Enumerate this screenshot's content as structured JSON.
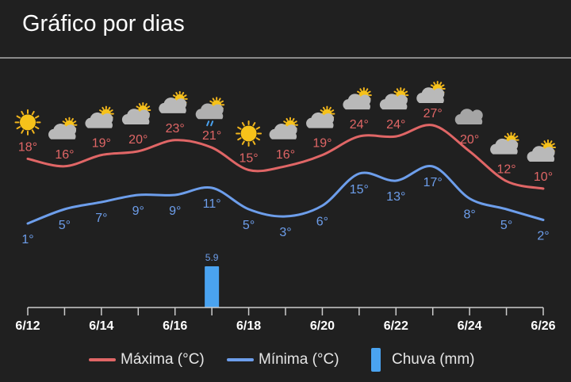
{
  "header": {
    "title": "Gráfico por dias"
  },
  "colors": {
    "max": "#e06666",
    "min": "#6d9eeb",
    "rain": "#4aa3f0",
    "axis": "#cccccc",
    "background": "#202020"
  },
  "chart_data": {
    "type": "line",
    "x": [
      "6/12",
      "6/13",
      "6/14",
      "6/15",
      "6/16",
      "6/17",
      "6/18",
      "6/19",
      "6/20",
      "6/21",
      "6/22",
      "6/23",
      "6/24",
      "6/25",
      "6/26"
    ],
    "x_tick_labels": [
      "6/12",
      "6/14",
      "6/16",
      "6/18",
      "6/20",
      "6/22",
      "6/24",
      "6/26"
    ],
    "series": [
      {
        "name": "Máxima (°C)",
        "values": [
          18,
          16,
          19,
          20,
          23,
          21,
          15,
          16,
          19,
          24,
          24,
          27,
          20,
          12,
          10
        ],
        "labels": [
          "18°",
          "16°",
          "19°",
          "20°",
          "23°",
          "21°",
          "15°",
          "16°",
          "19°",
          "24°",
          "24°",
          "27°",
          "20°",
          "12°",
          "10°"
        ]
      },
      {
        "name": "Mínima (°C)",
        "values": [
          1,
          5,
          7,
          9,
          9,
          11,
          5,
          3,
          6,
          15,
          13,
          17,
          8,
          5,
          2
        ],
        "labels": [
          "1°",
          "5°",
          "7°",
          "9°",
          "9°",
          "11°",
          "5°",
          "3°",
          "6°",
          "15°",
          "13°",
          "17°",
          "8°",
          "5°",
          "2°"
        ]
      },
      {
        "name": "Chuva (mm)",
        "type": "bar",
        "values": [
          0,
          0,
          0,
          0,
          0,
          5.9,
          0,
          0,
          0,
          0,
          0,
          0,
          0,
          0,
          0
        ],
        "labels": [
          "",
          "",
          "",
          "",
          "",
          "5.9",
          "",
          "",
          "",
          "",
          "",
          "",
          "",
          "",
          ""
        ]
      }
    ],
    "icons": [
      "sun-icon",
      "cloud-sun-icon",
      "cloud-sun-icon",
      "cloud-sun-icon",
      "cloud-sun-icon",
      "rain-icon",
      "sun-icon",
      "cloud-sun-icon",
      "cloud-sun-icon",
      "cloud-sun-icon",
      "cloud-sun-icon",
      "cloud-sun-icon",
      "cloud-icon",
      "cloud-sun-icon",
      "cloud-sun-icon"
    ],
    "legend_position": "bottom",
    "grid": false
  }
}
